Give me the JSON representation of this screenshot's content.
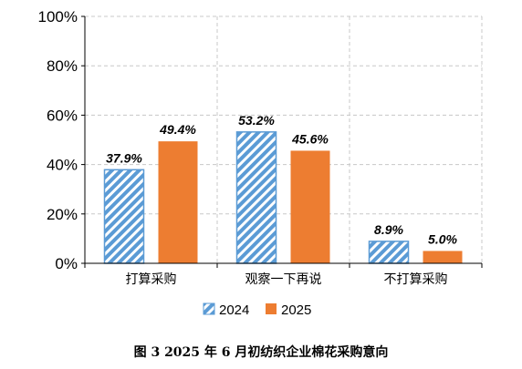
{
  "caption": "图 3   2025 年 6 月初纺织企业棉花采购意向",
  "colors": {
    "s2024": "#5b9bd5",
    "s2025": "#ed7d31"
  },
  "chart_data": {
    "type": "bar",
    "title": "",
    "xlabel": "",
    "ylabel": "",
    "categories": [
      "打算采购",
      "观察一下再说",
      "不打算采购"
    ],
    "series": [
      {
        "name": "2024",
        "values": [
          37.9,
          53.2,
          8.9
        ],
        "labels": [
          "37.9%",
          "53.2%",
          "8.9%"
        ],
        "pattern": "diagonal-hatch"
      },
      {
        "name": "2025",
        "values": [
          49.4,
          45.6,
          5.0
        ],
        "labels": [
          "49.4%",
          "45.6%",
          "5.0%"
        ],
        "pattern": "solid"
      }
    ],
    "ylim": [
      0,
      100
    ],
    "yticks": [
      "0%",
      "20%",
      "40%",
      "60%",
      "80%",
      "100%"
    ],
    "ytick_values": [
      0,
      20,
      40,
      60,
      80,
      100
    ],
    "grid": "dashed",
    "legend": "bottom"
  }
}
